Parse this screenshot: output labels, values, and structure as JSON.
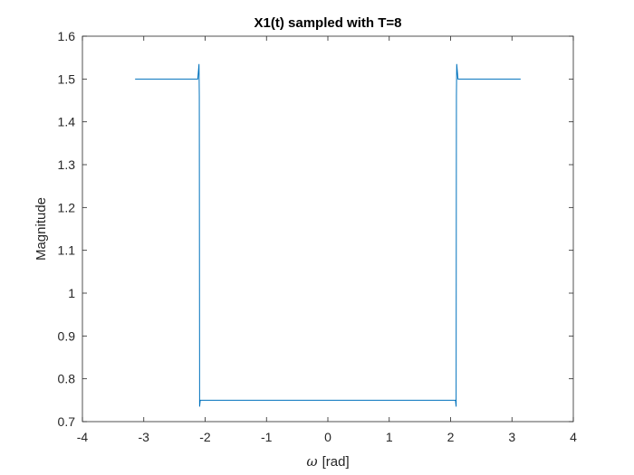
{
  "chart_data": {
    "type": "line",
    "title": "X1(t) sampled with T=8",
    "xlabel_symbol": "ω",
    "xlabel_unit": "[rad]",
    "ylabel": "Magnitude",
    "xlim": [
      -4,
      4
    ],
    "ylim": [
      0.7,
      1.6
    ],
    "xticks": [
      -4,
      -3,
      -2,
      -1,
      0,
      1,
      2,
      3,
      4
    ],
    "yticks": [
      0.7,
      0.8,
      0.9,
      1,
      1.1,
      1.2,
      1.3,
      1.4,
      1.5,
      1.6
    ],
    "xtick_labels": [
      "-4",
      "-3",
      "-2",
      "-1",
      "0",
      "1",
      "2",
      "3",
      "4"
    ],
    "ytick_labels": [
      "0.7",
      "0.8",
      "0.9",
      "1",
      "1.1",
      "1.2",
      "1.3",
      "1.4",
      "1.5",
      "1.6"
    ],
    "grid": false,
    "line_color": "#0072BD",
    "series": [
      {
        "x": [
          -3.1416,
          -2.2,
          -2.12,
          -2.1,
          -2.095,
          -2.09,
          -2.08,
          -2.0,
          2.0,
          2.08,
          2.09,
          2.095,
          2.1,
          2.12,
          2.2,
          3.1416
        ],
        "y": [
          1.5,
          1.5,
          1.5,
          1.535,
          1.46,
          0.735,
          0.75,
          0.75,
          0.75,
          0.75,
          0.735,
          1.46,
          1.535,
          1.5,
          1.5,
          1.5
        ]
      }
    ]
  }
}
